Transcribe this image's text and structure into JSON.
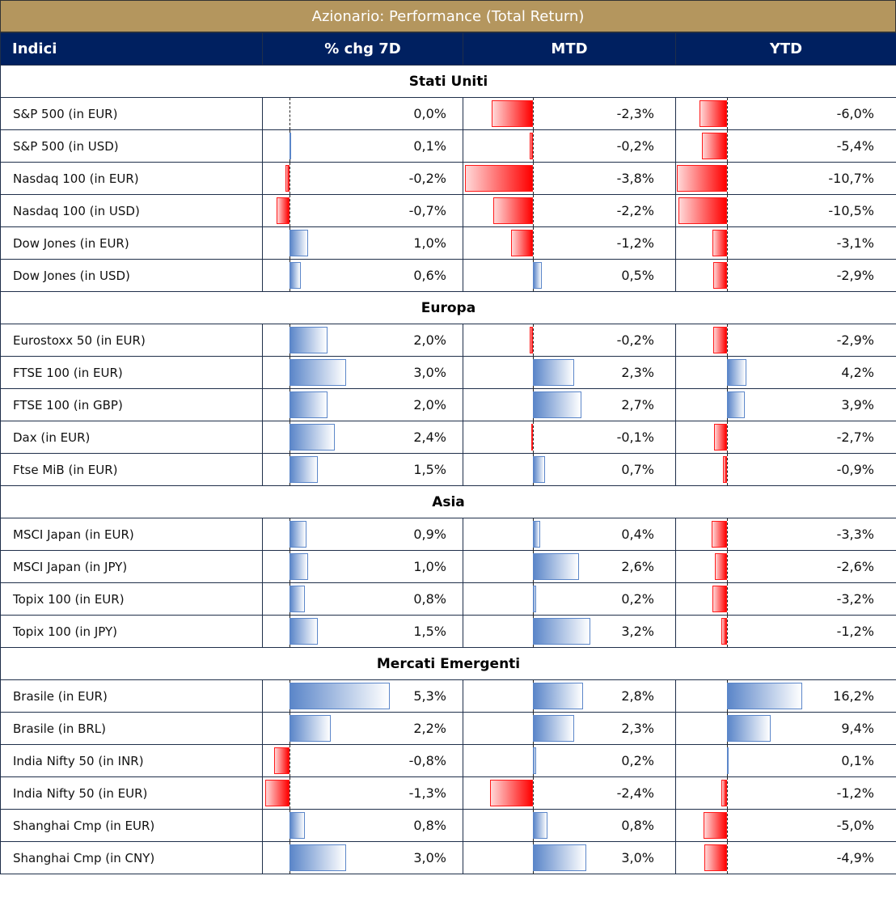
{
  "title": "Azionario: Performance (Total Return)",
  "headers": [
    "Indici",
    "% chg 7D",
    "MTD",
    "YTD"
  ],
  "sections": [
    {
      "name": "Stati Uniti",
      "rows": [
        {
          "name": "S&P 500 (in EUR)",
          "d7": 0.0,
          "mtd": -2.3,
          "ytd": -6.0,
          "d7_label": "0,0%",
          "mtd_label": "-2,3%",
          "ytd_label": "-6,0%"
        },
        {
          "name": "S&P 500 (in USD)",
          "d7": 0.1,
          "mtd": -0.2,
          "ytd": -5.4,
          "d7_label": "0,1%",
          "mtd_label": "-0,2%",
          "ytd_label": "-5,4%"
        },
        {
          "name": "Nasdaq 100 (in EUR)",
          "d7": -0.2,
          "mtd": -3.8,
          "ytd": -10.7,
          "d7_label": "-0,2%",
          "mtd_label": "-3,8%",
          "ytd_label": "-10,7%"
        },
        {
          "name": "Nasdaq 100 (in USD)",
          "d7": -0.7,
          "mtd": -2.2,
          "ytd": -10.5,
          "d7_label": "-0,7%",
          "mtd_label": "-2,2%",
          "ytd_label": "-10,5%"
        },
        {
          "name": "Dow Jones (in EUR)",
          "d7": 1.0,
          "mtd": -1.2,
          "ytd": -3.1,
          "d7_label": "1,0%",
          "mtd_label": "-1,2%",
          "ytd_label": "-3,1%"
        },
        {
          "name": "Dow Jones (in USD)",
          "d7": 0.6,
          "mtd": 0.5,
          "ytd": -2.9,
          "d7_label": "0,6%",
          "mtd_label": "0,5%",
          "ytd_label": "-2,9%"
        }
      ]
    },
    {
      "name": "Europa",
      "rows": [
        {
          "name": "Eurostoxx 50 (in EUR)",
          "d7": 2.0,
          "mtd": -0.2,
          "ytd": -2.9,
          "d7_label": "2,0%",
          "mtd_label": "-0,2%",
          "ytd_label": "-2,9%"
        },
        {
          "name": "FTSE 100 (in EUR)",
          "d7": 3.0,
          "mtd": 2.3,
          "ytd": 4.2,
          "d7_label": "3,0%",
          "mtd_label": "2,3%",
          "ytd_label": "4,2%"
        },
        {
          "name": "FTSE 100 (in GBP)",
          "d7": 2.0,
          "mtd": 2.7,
          "ytd": 3.9,
          "d7_label": "2,0%",
          "mtd_label": "2,7%",
          "ytd_label": "3,9%"
        },
        {
          "name": "Dax (in EUR)",
          "d7": 2.4,
          "mtd": -0.1,
          "ytd": -2.7,
          "d7_label": "2,4%",
          "mtd_label": "-0,1%",
          "ytd_label": "-2,7%"
        },
        {
          "name": "Ftse MiB (in EUR)",
          "d7": 1.5,
          "mtd": 0.7,
          "ytd": -0.9,
          "d7_label": "1,5%",
          "mtd_label": "0,7%",
          "ytd_label": "-0,9%"
        }
      ]
    },
    {
      "name": "Asia",
      "rows": [
        {
          "name": "MSCI Japan (in EUR)",
          "d7": 0.9,
          "mtd": 0.4,
          "ytd": -3.3,
          "d7_label": "0,9%",
          "mtd_label": "0,4%",
          "ytd_label": "-3,3%"
        },
        {
          "name": "MSCI Japan (in JPY)",
          "d7": 1.0,
          "mtd": 2.6,
          "ytd": -2.6,
          "d7_label": "1,0%",
          "mtd_label": "2,6%",
          "ytd_label": "-2,6%"
        },
        {
          "name": "Topix 100 (in EUR)",
          "d7": 0.8,
          "mtd": 0.2,
          "ytd": -3.2,
          "d7_label": "0,8%",
          "mtd_label": "0,2%",
          "ytd_label": "-3,2%"
        },
        {
          "name": "Topix 100 (in JPY)",
          "d7": 1.5,
          "mtd": 3.2,
          "ytd": -1.2,
          "d7_label": "1,5%",
          "mtd_label": "3,2%",
          "ytd_label": "-1,2%"
        }
      ]
    },
    {
      "name": "Mercati Emergenti",
      "rows": [
        {
          "name": "Brasile (in EUR)",
          "d7": 5.3,
          "mtd": 2.8,
          "ytd": 16.2,
          "d7_label": "5,3%",
          "mtd_label": "2,8%",
          "ytd_label": "16,2%"
        },
        {
          "name": "Brasile (in BRL)",
          "d7": 2.2,
          "mtd": 2.3,
          "ytd": 9.4,
          "d7_label": "2,2%",
          "mtd_label": "2,3%",
          "ytd_label": "9,4%"
        },
        {
          "name": "India Nifty 50 (in INR)",
          "d7": -0.8,
          "mtd": 0.2,
          "ytd": 0.1,
          "d7_label": "-0,8%",
          "mtd_label": "0,2%",
          "ytd_label": "0,1%"
        },
        {
          "name": "India Nifty 50 (in EUR)",
          "d7": -1.3,
          "mtd": -2.4,
          "ytd": -1.2,
          "d7_label": "-1,3%",
          "mtd_label": "-2,4%",
          "ytd_label": "-1,2%"
        },
        {
          "name": "Shanghai Cmp (in EUR)",
          "d7": 0.8,
          "mtd": 0.8,
          "ytd": -5.0,
          "d7_label": "0,8%",
          "mtd_label": "0,8%",
          "ytd_label": "-5,0%"
        },
        {
          "name": "Shanghai Cmp (in CNY)",
          "d7": 3.0,
          "mtd": 3.0,
          "ytd": -4.9,
          "d7_label": "3,0%",
          "mtd_label": "3,0%",
          "ytd_label": "-4,9%"
        }
      ]
    }
  ]
}
